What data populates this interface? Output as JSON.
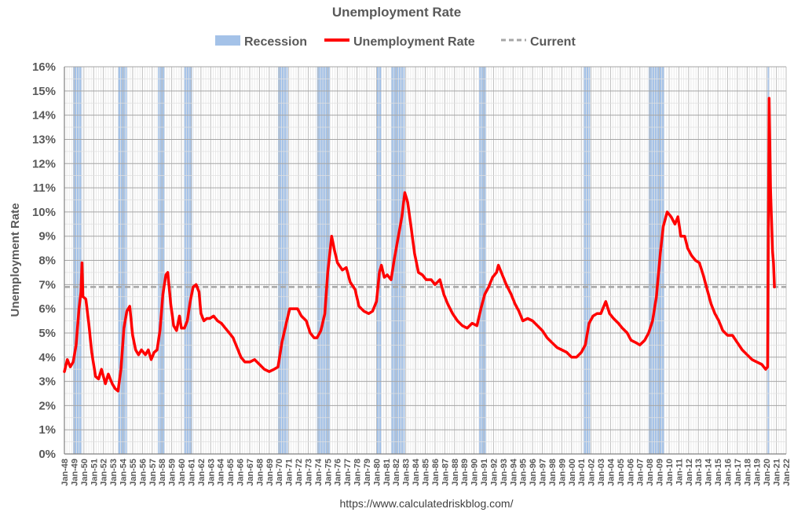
{
  "chart_data": {
    "type": "line",
    "title": "Unemployment Rate",
    "ylabel": "Unemployment Rate",
    "footer": "https://www.calculatedriskblog.com/",
    "ylim": [
      0,
      16
    ],
    "xlim": [
      1948.0,
      2022.0
    ],
    "grid": true,
    "legend_position": "top",
    "legend": [
      {
        "name": "Recession",
        "kind": "band"
      },
      {
        "name": "Unemployment Rate",
        "kind": "line"
      },
      {
        "name": "Current",
        "kind": "dashed"
      }
    ],
    "y_ticks": [
      "0%",
      "1%",
      "2%",
      "3%",
      "4%",
      "5%",
      "6%",
      "7%",
      "8%",
      "9%",
      "10%",
      "11%",
      "12%",
      "13%",
      "14%",
      "15%",
      "16%"
    ],
    "x_ticks": [
      "Jan-48",
      "Jan-49",
      "Jan-50",
      "Jan-51",
      "Jan-52",
      "Jan-53",
      "Jan-54",
      "Jan-55",
      "Jan-56",
      "Jan-57",
      "Jan-58",
      "Jan-59",
      "Jan-60",
      "Jan-61",
      "Jan-62",
      "Jan-63",
      "Jan-64",
      "Jan-65",
      "Jan-66",
      "Jan-67",
      "Jan-68",
      "Jan-69",
      "Jan-70",
      "Jan-71",
      "Jan-72",
      "Jan-73",
      "Jan-74",
      "Jan-75",
      "Jan-76",
      "Jan-77",
      "Jan-78",
      "Jan-79",
      "Jan-80",
      "Jan-81",
      "Jan-82",
      "Jan-83",
      "Jan-84",
      "Jan-85",
      "Jan-86",
      "Jan-87",
      "Jan-88",
      "Jan-89",
      "Jan-90",
      "Jan-91",
      "Jan-92",
      "Jan-93",
      "Jan-94",
      "Jan-95",
      "Jan-96",
      "Jan-97",
      "Jan-98",
      "Jan-99",
      "Jan-00",
      "Jan-01",
      "Jan-02",
      "Jan-03",
      "Jan-04",
      "Jan-05",
      "Jan-06",
      "Jan-07",
      "Jan-08",
      "Jan-09",
      "Jan-10",
      "Jan-11",
      "Jan-12",
      "Jan-13",
      "Jan-14",
      "Jan-15",
      "Jan-16",
      "Jan-17",
      "Jan-18",
      "Jan-19",
      "Jan-20",
      "Jan-21",
      "Jan-22"
    ],
    "recessions": [
      [
        1948.9,
        1949.8
      ],
      [
        1953.5,
        1954.4
      ],
      [
        1957.6,
        1958.3
      ],
      [
        1960.3,
        1961.1
      ],
      [
        1969.9,
        1970.9
      ],
      [
        1973.9,
        1975.2
      ],
      [
        1980.0,
        1980.5
      ],
      [
        1981.5,
        1982.9
      ],
      [
        1990.5,
        1991.2
      ],
      [
        2001.2,
        2001.9
      ],
      [
        2007.9,
        2009.5
      ],
      [
        2020.1,
        2020.3
      ]
    ],
    "current_value": 6.9,
    "current_from": 1948.0,
    "series": [
      {
        "name": "Unemployment Rate",
        "color": "#ff0000",
        "points": [
          [
            1948.0,
            3.4
          ],
          [
            1948.3,
            3.9
          ],
          [
            1948.6,
            3.6
          ],
          [
            1948.9,
            3.8
          ],
          [
            1949.2,
            4.5
          ],
          [
            1949.5,
            6.0
          ],
          [
            1949.7,
            6.7
          ],
          [
            1949.8,
            7.9
          ],
          [
            1949.9,
            6.5
          ],
          [
            1950.2,
            6.4
          ],
          [
            1950.5,
            5.4
          ],
          [
            1950.8,
            4.2
          ],
          [
            1951.2,
            3.2
          ],
          [
            1951.5,
            3.1
          ],
          [
            1951.8,
            3.5
          ],
          [
            1952.2,
            2.9
          ],
          [
            1952.5,
            3.3
          ],
          [
            1952.9,
            2.9
          ],
          [
            1953.2,
            2.7
          ],
          [
            1953.5,
            2.6
          ],
          [
            1953.8,
            3.5
          ],
          [
            1954.1,
            5.2
          ],
          [
            1954.4,
            5.9
          ],
          [
            1954.7,
            6.1
          ],
          [
            1955.0,
            4.9
          ],
          [
            1955.3,
            4.3
          ],
          [
            1955.6,
            4.1
          ],
          [
            1955.9,
            4.3
          ],
          [
            1956.3,
            4.1
          ],
          [
            1956.6,
            4.3
          ],
          [
            1956.9,
            3.9
          ],
          [
            1957.2,
            4.2
          ],
          [
            1957.5,
            4.3
          ],
          [
            1957.8,
            5.1
          ],
          [
            1958.1,
            6.6
          ],
          [
            1958.4,
            7.4
          ],
          [
            1958.6,
            7.5
          ],
          [
            1958.9,
            6.2
          ],
          [
            1959.2,
            5.3
          ],
          [
            1959.5,
            5.1
          ],
          [
            1959.8,
            5.7
          ],
          [
            1960.0,
            5.2
          ],
          [
            1960.3,
            5.2
          ],
          [
            1960.6,
            5.5
          ],
          [
            1960.9,
            6.3
          ],
          [
            1961.2,
            6.9
          ],
          [
            1961.5,
            7.0
          ],
          [
            1961.8,
            6.7
          ],
          [
            1962.0,
            5.8
          ],
          [
            1962.3,
            5.5
          ],
          [
            1962.6,
            5.6
          ],
          [
            1962.9,
            5.6
          ],
          [
            1963.3,
            5.7
          ],
          [
            1963.7,
            5.5
          ],
          [
            1964.1,
            5.4
          ],
          [
            1964.5,
            5.2
          ],
          [
            1964.9,
            5.0
          ],
          [
            1965.3,
            4.8
          ],
          [
            1965.7,
            4.4
          ],
          [
            1966.1,
            4.0
          ],
          [
            1966.5,
            3.8
          ],
          [
            1967.0,
            3.8
          ],
          [
            1967.5,
            3.9
          ],
          [
            1968.0,
            3.7
          ],
          [
            1968.5,
            3.5
          ],
          [
            1969.0,
            3.4
          ],
          [
            1969.5,
            3.5
          ],
          [
            1969.9,
            3.6
          ],
          [
            1970.3,
            4.6
          ],
          [
            1970.8,
            5.5
          ],
          [
            1971.1,
            6.0
          ],
          [
            1971.5,
            6.0
          ],
          [
            1971.9,
            6.0
          ],
          [
            1972.3,
            5.7
          ],
          [
            1972.8,
            5.5
          ],
          [
            1973.2,
            5.0
          ],
          [
            1973.6,
            4.8
          ],
          [
            1973.9,
            4.8
          ],
          [
            1974.3,
            5.1
          ],
          [
            1974.7,
            5.8
          ],
          [
            1975.0,
            7.5
          ],
          [
            1975.3,
            8.6
          ],
          [
            1975.4,
            9.0
          ],
          [
            1975.7,
            8.4
          ],
          [
            1976.0,
            7.9
          ],
          [
            1976.5,
            7.6
          ],
          [
            1976.9,
            7.7
          ],
          [
            1977.3,
            7.1
          ],
          [
            1977.8,
            6.8
          ],
          [
            1978.2,
            6.1
          ],
          [
            1978.7,
            5.9
          ],
          [
            1979.2,
            5.8
          ],
          [
            1979.6,
            5.9
          ],
          [
            1980.0,
            6.3
          ],
          [
            1980.3,
            7.5
          ],
          [
            1980.5,
            7.8
          ],
          [
            1980.8,
            7.3
          ],
          [
            1981.1,
            7.4
          ],
          [
            1981.5,
            7.2
          ],
          [
            1981.8,
            8.0
          ],
          [
            1982.2,
            8.9
          ],
          [
            1982.6,
            9.8
          ],
          [
            1982.9,
            10.8
          ],
          [
            1983.2,
            10.4
          ],
          [
            1983.5,
            9.5
          ],
          [
            1983.9,
            8.3
          ],
          [
            1984.3,
            7.5
          ],
          [
            1984.7,
            7.4
          ],
          [
            1985.1,
            7.2
          ],
          [
            1985.6,
            7.2
          ],
          [
            1986.0,
            7.0
          ],
          [
            1986.5,
            7.2
          ],
          [
            1986.9,
            6.6
          ],
          [
            1987.3,
            6.2
          ],
          [
            1987.8,
            5.8
          ],
          [
            1988.3,
            5.5
          ],
          [
            1988.8,
            5.3
          ],
          [
            1989.3,
            5.2
          ],
          [
            1989.8,
            5.4
          ],
          [
            1990.3,
            5.3
          ],
          [
            1990.7,
            6.0
          ],
          [
            1991.1,
            6.6
          ],
          [
            1991.5,
            6.9
          ],
          [
            1991.9,
            7.3
          ],
          [
            1992.3,
            7.5
          ],
          [
            1992.5,
            7.8
          ],
          [
            1992.9,
            7.4
          ],
          [
            1993.3,
            7.0
          ],
          [
            1993.8,
            6.6
          ],
          [
            1994.2,
            6.2
          ],
          [
            1994.6,
            5.9
          ],
          [
            1995.0,
            5.5
          ],
          [
            1995.5,
            5.6
          ],
          [
            1996.0,
            5.5
          ],
          [
            1996.5,
            5.3
          ],
          [
            1997.0,
            5.1
          ],
          [
            1997.5,
            4.8
          ],
          [
            1998.0,
            4.6
          ],
          [
            1998.5,
            4.4
          ],
          [
            1999.0,
            4.3
          ],
          [
            1999.5,
            4.2
          ],
          [
            2000.0,
            4.0
          ],
          [
            2000.5,
            4.0
          ],
          [
            2001.0,
            4.2
          ],
          [
            2001.4,
            4.5
          ],
          [
            2001.8,
            5.4
          ],
          [
            2002.2,
            5.7
          ],
          [
            2002.6,
            5.8
          ],
          [
            2003.0,
            5.8
          ],
          [
            2003.5,
            6.3
          ],
          [
            2003.9,
            5.8
          ],
          [
            2004.3,
            5.6
          ],
          [
            2004.8,
            5.4
          ],
          [
            2005.2,
            5.2
          ],
          [
            2005.7,
            5.0
          ],
          [
            2006.1,
            4.7
          ],
          [
            2006.6,
            4.6
          ],
          [
            2007.0,
            4.5
          ],
          [
            2007.5,
            4.7
          ],
          [
            2007.9,
            5.0
          ],
          [
            2008.3,
            5.5
          ],
          [
            2008.7,
            6.5
          ],
          [
            2009.1,
            8.3
          ],
          [
            2009.4,
            9.4
          ],
          [
            2009.8,
            10.0
          ],
          [
            2010.2,
            9.8
          ],
          [
            2010.6,
            9.5
          ],
          [
            2010.9,
            9.8
          ],
          [
            2011.2,
            9.0
          ],
          [
            2011.6,
            9.0
          ],
          [
            2011.9,
            8.5
          ],
          [
            2012.3,
            8.2
          ],
          [
            2012.7,
            8.0
          ],
          [
            2013.1,
            7.9
          ],
          [
            2013.5,
            7.4
          ],
          [
            2013.9,
            6.8
          ],
          [
            2014.3,
            6.2
          ],
          [
            2014.7,
            5.8
          ],
          [
            2015.1,
            5.5
          ],
          [
            2015.5,
            5.1
          ],
          [
            2016.0,
            4.9
          ],
          [
            2016.5,
            4.9
          ],
          [
            2017.0,
            4.6
          ],
          [
            2017.5,
            4.3
          ],
          [
            2018.0,
            4.1
          ],
          [
            2018.5,
            3.9
          ],
          [
            2019.0,
            3.8
          ],
          [
            2019.5,
            3.7
          ],
          [
            2019.9,
            3.5
          ],
          [
            2020.1,
            3.6
          ],
          [
            2020.25,
            14.7
          ],
          [
            2020.4,
            11.0
          ],
          [
            2020.6,
            8.4
          ],
          [
            2020.7,
            7.9
          ],
          [
            2020.8,
            6.9
          ]
        ]
      }
    ],
    "colors": {
      "recession": "#a4c2e8",
      "line": "#ff0000",
      "current": "#a6a6a6",
      "grid": "#d9d9d9",
      "text": "#595959"
    }
  }
}
